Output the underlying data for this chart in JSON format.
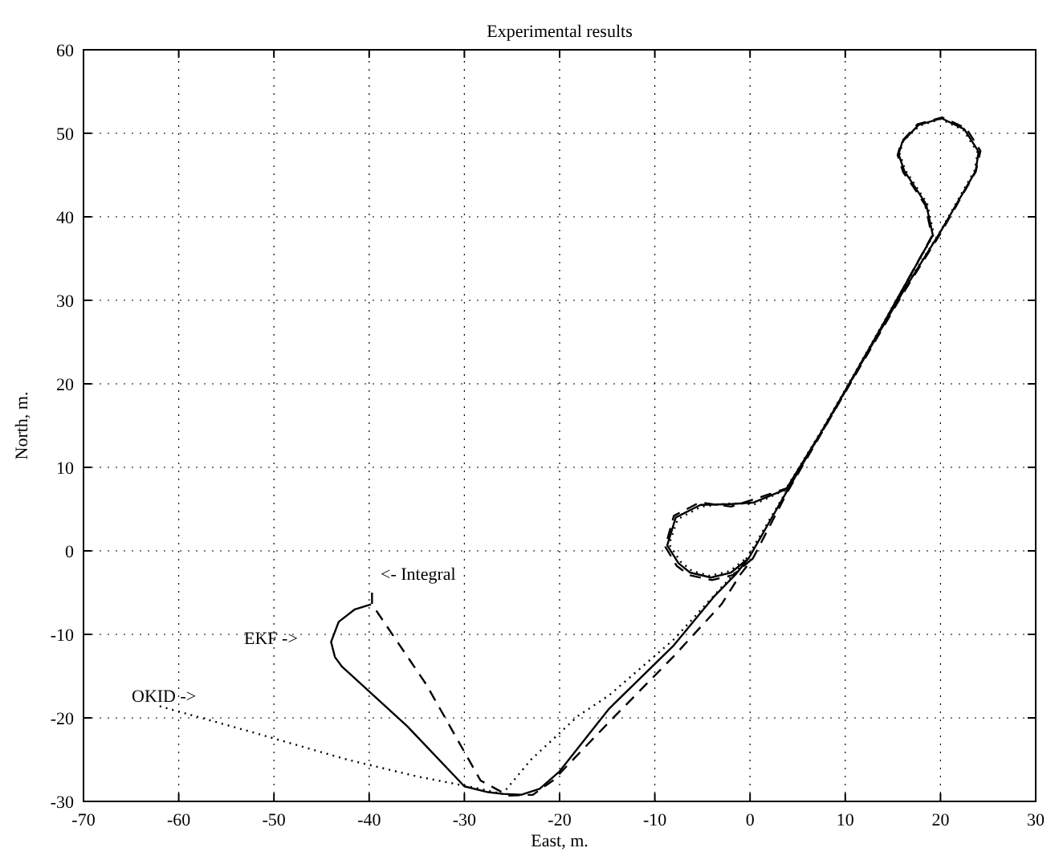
{
  "chart_data": {
    "type": "line",
    "title": "Experimental results",
    "xlabel": "East, m.",
    "ylabel": "North, m.",
    "xlim": [
      -70,
      30
    ],
    "ylim": [
      -30,
      60
    ],
    "xticks": [
      -70,
      -60,
      -50,
      -40,
      -30,
      -20,
      -10,
      0,
      10,
      20,
      30
    ],
    "yticks": [
      -30,
      -20,
      -10,
      0,
      10,
      20,
      30,
      40,
      50,
      60
    ],
    "grid": true,
    "annotations": [
      "<- Integral",
      "EKF ->",
      "OKID ->"
    ],
    "series": [
      {
        "color": "#000000",
        "line_style": "solid",
        "x": [
          -39.8,
          -41.5,
          -43.2,
          -44,
          -43.6,
          -42.9,
          -36,
          -30,
          -27.5,
          -26,
          -24,
          -22.1,
          -20,
          -14.8,
          -8,
          -3.8,
          -1.5,
          -0.15,
          4,
          10,
          16,
          20,
          23.7,
          24,
          22.5,
          20.1,
          17.7,
          16,
          15.6,
          16.2,
          17.3,
          18.5,
          19.2,
          14,
          8,
          3.8,
          0.4,
          -2,
          -5.2,
          -7.8,
          -8.7,
          -7.5,
          -6.3,
          -4.1,
          -2,
          -0.15
        ],
        "values": [
          -6.4,
          -7,
          -8.5,
          -10.9,
          -12.7,
          -13.8,
          -21,
          -28.2,
          -28.9,
          -29.1,
          -29.2,
          -28.5,
          -26.4,
          -18.9,
          -11.3,
          -5.5,
          -2.8,
          -0.9,
          7.4,
          19.2,
          30.9,
          38.2,
          45.5,
          47.8,
          50.5,
          51.8,
          51,
          49,
          47.5,
          45.5,
          43.6,
          41.5,
          37.8,
          27.2,
          15.2,
          7.4,
          5.8,
          5.6,
          5.5,
          4,
          0.67,
          -1.5,
          -2.6,
          -3.2,
          -2.6,
          -0.9
        ]
      },
      {
        "color": "#000000",
        "line_style": "dashed",
        "x": [
          -39.7,
          -39.7,
          -34,
          -28.3,
          -25.4,
          -22.8,
          -20.7,
          -14.8,
          -8,
          -3,
          -1,
          0.3,
          4,
          10,
          16,
          20,
          23.7,
          24.2,
          22.7,
          20.2,
          17.6,
          15.9,
          15.5,
          16.1,
          17.2,
          18.4,
          19.1,
          14,
          8,
          3.9,
          0.2,
          -2,
          -5.3,
          -8,
          -8.9,
          -7.7,
          -6.4,
          -4,
          -1.8,
          0.3
        ],
        "values": [
          -5,
          -6.4,
          -16,
          -27.5,
          -29.3,
          -29.2,
          -27.5,
          -20.5,
          -12.6,
          -6.4,
          -2.8,
          -0.9,
          7.2,
          19,
          30.7,
          38,
          45.4,
          47.9,
          50.6,
          51.9,
          51.1,
          49,
          47.4,
          45.3,
          43.5,
          41.4,
          37.7,
          27.1,
          15.1,
          7.5,
          6.1,
          5.3,
          5.8,
          4.2,
          0.5,
          -1.8,
          -2.9,
          -3.5,
          -2.9,
          -0.9
        ]
      },
      {
        "color": "#000000",
        "line_style": "dotted",
        "x": [
          -62,
          -52,
          -42.3,
          -35,
          -28.3,
          -26,
          -23,
          -18.1,
          -14.8,
          -8,
          -3.5,
          -1.5,
          -0.3,
          4,
          10,
          16,
          20,
          23.6,
          23.9,
          22.4,
          20,
          17.8,
          16.1,
          15.7,
          16.3,
          17.4,
          18.6,
          19.3,
          14,
          8,
          3.7,
          0.5,
          -2,
          -5.1,
          -7.6,
          -8.5,
          -7.3,
          -6.1,
          -4.2,
          -2.1,
          -0.3
        ],
        "values": [
          -18.6,
          -21.8,
          -25,
          -27,
          -28.5,
          -29.1,
          -25,
          -19.8,
          -17.3,
          -10.6,
          -5,
          -2.5,
          -0.8,
          7.5,
          19.3,
          31,
          38.3,
          45.6,
          47.7,
          50.4,
          51.7,
          50.9,
          49.1,
          47.6,
          45.6,
          43.7,
          41.6,
          37.9,
          27.3,
          15.3,
          7.3,
          5.6,
          5.7,
          5.3,
          3.8,
          0.8,
          -1.3,
          -2.4,
          -3,
          -2.4,
          -0.8
        ]
      }
    ]
  }
}
